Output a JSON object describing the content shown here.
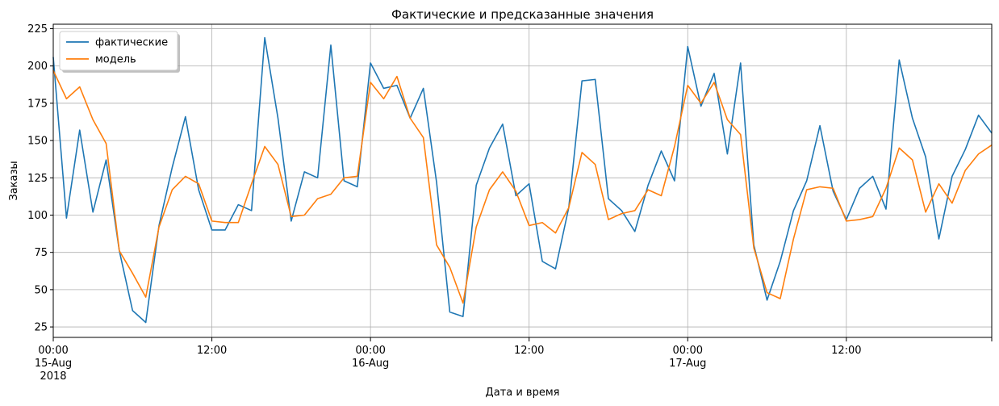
{
  "chart_data": {
    "type": "line",
    "title": "Фактические и предсказанные значения",
    "xlabel": "Дата и время",
    "ylabel": "Заказы",
    "x_start": "2018-08-15 00:00",
    "x_step": "1h",
    "xlim": [
      0,
      71
    ],
    "ylim": [
      18,
      228
    ],
    "y_ticks": [
      25,
      50,
      75,
      100,
      125,
      150,
      175,
      200,
      225
    ],
    "x_ticks": [
      {
        "x": 0,
        "label": "00:00",
        "sub": "15-Aug",
        "sub2": "2018"
      },
      {
        "x": 12,
        "label": "12:00",
        "sub": "",
        "sub2": ""
      },
      {
        "x": 24,
        "label": "00:00",
        "sub": "16-Aug",
        "sub2": ""
      },
      {
        "x": 36,
        "label": "12:00",
        "sub": "",
        "sub2": ""
      },
      {
        "x": 48,
        "label": "00:00",
        "sub": "17-Aug",
        "sub2": ""
      },
      {
        "x": 60,
        "label": "12:00",
        "sub": "",
        "sub2": ""
      }
    ],
    "grid": true,
    "legend_position": "top-left",
    "series": [
      {
        "name": "фактические",
        "color": "#1f77b4",
        "values": [
          206,
          98,
          157,
          102,
          137,
          76,
          36,
          28,
          93,
          132,
          166,
          117,
          90,
          90,
          107,
          103,
          219,
          165,
          96,
          129,
          125,
          214,
          123,
          119,
          202,
          185,
          187,
          165,
          185,
          122,
          35,
          32,
          120,
          145,
          161,
          113,
          121,
          69,
          64,
          105,
          190,
          191,
          111,
          103,
          89,
          120,
          143,
          123,
          213,
          173,
          195,
          141,
          202,
          80,
          43,
          69,
          103,
          123,
          160,
          116,
          97,
          118,
          126,
          104,
          204,
          165,
          139,
          84,
          126,
          144,
          167,
          155
        ]
      },
      {
        "name": "модель",
        "color": "#ff7f0e",
        "values": [
          197,
          178,
          186,
          164,
          148,
          76,
          61,
          45,
          92,
          117,
          126,
          121,
          96,
          95,
          95,
          121,
          146,
          134,
          99,
          100,
          111,
          114,
          125,
          126,
          189,
          178,
          193,
          165,
          152,
          80,
          65,
          41,
          92,
          117,
          129,
          116,
          93,
          95,
          88,
          105,
          142,
          134,
          97,
          101,
          103,
          117,
          113,
          146,
          187,
          175,
          189,
          164,
          154,
          78,
          48,
          44,
          84,
          117,
          119,
          118,
          96,
          97,
          99,
          118,
          145,
          137,
          102,
          121,
          108,
          130,
          141,
          147
        ]
      }
    ]
  }
}
